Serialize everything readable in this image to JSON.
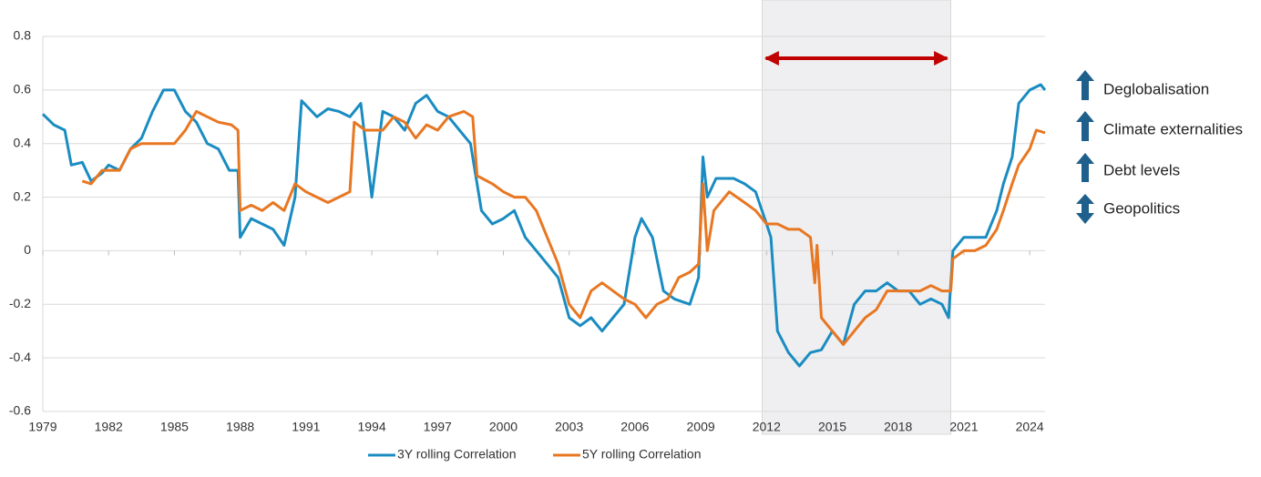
{
  "chart_data": {
    "type": "line",
    "xlim": [
      1979,
      2024.7
    ],
    "xticks": [
      1979,
      1982,
      1985,
      1988,
      1991,
      1994,
      1997,
      2000,
      2003,
      2006,
      2009,
      2012,
      2015,
      2018,
      2021,
      2024
    ],
    "ylim": [
      -0.6,
      0.8
    ],
    "yticks": [
      -0.6,
      -0.4,
      -0.2,
      0,
      0.2,
      0.4,
      0.6,
      0.8
    ],
    "grid": true,
    "shade": [
      2011.8,
      2020.4
    ],
    "arrow_color": "#c00000",
    "shade_color": "#efeff1",
    "series": [
      {
        "name": "3Y rolling Correlation",
        "color": "#1a8cc1",
        "x": [
          1979,
          1979.5,
          1980,
          1980.3,
          1980.8,
          1981.2,
          1981.7,
          1982,
          1982.5,
          1983,
          1983.5,
          1984,
          1984.5,
          1985,
          1985.5,
          1986,
          1986.5,
          1987,
          1987.5,
          1987.9,
          1988,
          1988.5,
          1989,
          1989.5,
          1990,
          1990.5,
          1990.8,
          1991.5,
          1992,
          1992.5,
          1993,
          1993.5,
          1994,
          1994.5,
          1995,
          1995.5,
          1996,
          1996.5,
          1997,
          1997.5,
          1998,
          1998.5,
          1999,
          1999.5,
          2000,
          2000.5,
          2001,
          2001.5,
          2002,
          2002.5,
          2003,
          2003.5,
          2004,
          2004.5,
          2005,
          2005.5,
          2006,
          2006.3,
          2006.8,
          2007.3,
          2007.8,
          2008.5,
          2008.9,
          2009.1,
          2009.3,
          2009.7,
          2010.5,
          2011,
          2011.5,
          2012,
          2012.2,
          2012.5,
          2013,
          2013.5,
          2014,
          2014.5,
          2015,
          2015.5,
          2016,
          2016.5,
          2017,
          2017.5,
          2018,
          2018.5,
          2019,
          2019.5,
          2020,
          2020.3,
          2020.5,
          2021,
          2021.5,
          2022,
          2022.5,
          2022.8,
          2023.2,
          2023.5,
          2024,
          2024.5,
          2024.7
        ],
        "values": [
          0.51,
          0.47,
          0.45,
          0.32,
          0.33,
          0.26,
          0.29,
          0.32,
          0.3,
          0.38,
          0.42,
          0.52,
          0.6,
          0.6,
          0.52,
          0.48,
          0.4,
          0.38,
          0.3,
          0.3,
          0.05,
          0.12,
          0.1,
          0.08,
          0.02,
          0.2,
          0.56,
          0.5,
          0.53,
          0.52,
          0.5,
          0.55,
          0.2,
          0.52,
          0.5,
          0.45,
          0.55,
          0.58,
          0.52,
          0.5,
          0.45,
          0.4,
          0.15,
          0.1,
          0.12,
          0.15,
          0.05,
          0,
          -0.05,
          -0.1,
          -0.25,
          -0.28,
          -0.25,
          -0.3,
          -0.25,
          -0.2,
          0.05,
          0.12,
          0.05,
          -0.15,
          -0.18,
          -0.2,
          -0.1,
          0.35,
          0.2,
          0.27,
          0.27,
          0.25,
          0.22,
          0.1,
          0.05,
          -0.3,
          -0.38,
          -0.43,
          -0.38,
          -0.37,
          -0.3,
          -0.35,
          -0.2,
          -0.15,
          -0.15,
          -0.12,
          -0.15,
          -0.15,
          -0.2,
          -0.18,
          -0.2,
          -0.25,
          0,
          0.05,
          0.05,
          0.05,
          0.15,
          0.25,
          0.35,
          0.55,
          0.6,
          0.62,
          0.6
        ]
      },
      {
        "name": "5Y rolling Correlation",
        "color": "#e87722",
        "x": [
          1980.8,
          1981.2,
          1981.7,
          1982.5,
          1983,
          1983.5,
          1984,
          1984.5,
          1985,
          1985.5,
          1986,
          1986.5,
          1987,
          1987.6,
          1987.9,
          1988,
          1988.5,
          1989,
          1989.5,
          1990,
          1990.5,
          1991,
          1991.5,
          1992,
          1992.5,
          1993,
          1993.2,
          1993.7,
          1994.5,
          1995,
          1995.5,
          1996,
          1996.5,
          1997,
          1997.5,
          1998.2,
          1998.6,
          1998.8,
          1999.5,
          2000,
          2000.5,
          2001,
          2001.5,
          2002,
          2002.5,
          2003,
          2003.5,
          2004,
          2004.5,
          2005,
          2005.5,
          2006,
          2006.5,
          2007,
          2007.5,
          2008,
          2008.5,
          2008.9,
          2009.1,
          2009.3,
          2009.6,
          2010.3,
          2011,
          2011.5,
          2012,
          2012.5,
          2013,
          2013.5,
          2014,
          2014.2,
          2014.3,
          2014.5,
          2015,
          2015.5,
          2016,
          2016.5,
          2017,
          2017.5,
          2018,
          2018.5,
          2019,
          2019.5,
          2020,
          2020.4,
          2020.5,
          2021,
          2021.5,
          2022,
          2022.5,
          2022.8,
          2023.2,
          2023.5,
          2024,
          2024.3,
          2024.7
        ],
        "values": [
          0.26,
          0.25,
          0.3,
          0.3,
          0.38,
          0.4,
          0.4,
          0.4,
          0.4,
          0.45,
          0.52,
          0.5,
          0.48,
          0.47,
          0.45,
          0.15,
          0.17,
          0.15,
          0.18,
          0.15,
          0.25,
          0.22,
          0.2,
          0.18,
          0.2,
          0.22,
          0.48,
          0.45,
          0.45,
          0.5,
          0.48,
          0.42,
          0.47,
          0.45,
          0.5,
          0.52,
          0.5,
          0.28,
          0.25,
          0.22,
          0.2,
          0.2,
          0.15,
          0.05,
          -0.05,
          -0.2,
          -0.25,
          -0.15,
          -0.12,
          -0.15,
          -0.18,
          -0.2,
          -0.25,
          -0.2,
          -0.18,
          -0.1,
          -0.08,
          -0.05,
          0.25,
          0,
          0.15,
          0.22,
          0.18,
          0.15,
          0.1,
          0.1,
          0.08,
          0.08,
          0.05,
          -0.12,
          0.02,
          -0.25,
          -0.3,
          -0.35,
          -0.3,
          -0.25,
          -0.22,
          -0.15,
          -0.15,
          -0.15,
          -0.15,
          -0.13,
          -0.15,
          -0.15,
          -0.03,
          0,
          0,
          0.02,
          0.08,
          0.15,
          0.25,
          0.32,
          0.38,
          0.45,
          0.44
        ]
      }
    ],
    "annotations": [
      "Deglobalisation",
      "Climate externalities",
      "Debt levels",
      "Geopolitics"
    ]
  }
}
